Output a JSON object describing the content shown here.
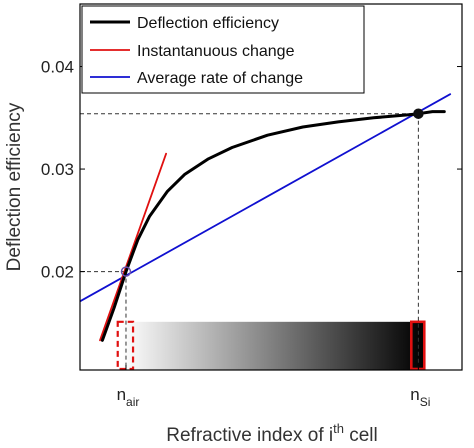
{
  "chart_data": {
    "type": "line",
    "xlabel_main": "Refractive index of i",
    "xlabel_sup": "th",
    "xlabel_tail": " cell",
    "ylabel": "Deflection efficiency",
    "ylim": [
      0.0104,
      0.0461
    ],
    "xlim": [
      0.61,
      3.85
    ],
    "y_ticks": [
      0.02,
      0.03,
      0.04
    ],
    "y_tick_labels": [
      "0.02",
      "0.03",
      "0.04"
    ],
    "x_tick_labels": [
      {
        "main": "n",
        "sub": "air",
        "x": 1.0
      },
      {
        "main": "n",
        "sub": "Si",
        "x": 3.48
      }
    ],
    "legend": {
      "placement": "top-left"
    },
    "series": [
      {
        "name": "Deflection efficiency",
        "color": "#000000",
        "x": [
          0.8,
          0.9,
          1.0,
          1.1,
          1.2,
          1.35,
          1.5,
          1.7,
          1.9,
          2.2,
          2.5,
          2.8,
          3.1,
          3.4,
          3.48,
          3.6,
          3.7
        ],
        "y": [
          0.0133,
          0.0165,
          0.02,
          0.0231,
          0.0254,
          0.0278,
          0.0295,
          0.031,
          0.0321,
          0.0333,
          0.0341,
          0.0346,
          0.035,
          0.0353,
          0.0354,
          0.0356,
          0.0356
        ]
      },
      {
        "name": "Instantanuous change",
        "color": "#e01010",
        "x": [
          0.78,
          1.34
        ],
        "y": [
          0.0133,
          0.0315
        ]
      },
      {
        "name": "Average rate of change",
        "color": "#1010d0",
        "x": [
          0.61,
          3.75
        ],
        "y": [
          0.0171,
          0.0373
        ]
      }
    ],
    "markers": [
      {
        "x": 1.0,
        "y": 0.02,
        "style": "open-circle",
        "color": "#6a4fb0"
      },
      {
        "x": 3.48,
        "y": 0.0354,
        "style": "filled-circle",
        "color": "#111111"
      }
    ],
    "reference_lines": [
      {
        "from": [
          0.61,
          0.02
        ],
        "to": [
          1.0,
          0.02
        ]
      },
      {
        "from": [
          1.0,
          0.02
        ],
        "to": [
          1.0,
          0.0104
        ]
      },
      {
        "from": [
          0.61,
          0.0354
        ],
        "to": [
          3.48,
          0.0354
        ]
      },
      {
        "from": [
          3.48,
          0.0354
        ],
        "to": [
          3.48,
          0.0104
        ]
      }
    ],
    "gradient_bar": {
      "x_start": 0.97,
      "x_end": 3.52,
      "y_bottom": 0.0104,
      "y_top": 0.0151,
      "color_from": "#ffffff",
      "color_to": "#000000",
      "left_box": {
        "x0": 0.93,
        "x1": 1.06,
        "style": "dashed",
        "color": "#e01010"
      },
      "right_box": {
        "x0": 3.42,
        "x1": 3.53,
        "style": "solid",
        "color": "#e01010"
      }
    }
  }
}
